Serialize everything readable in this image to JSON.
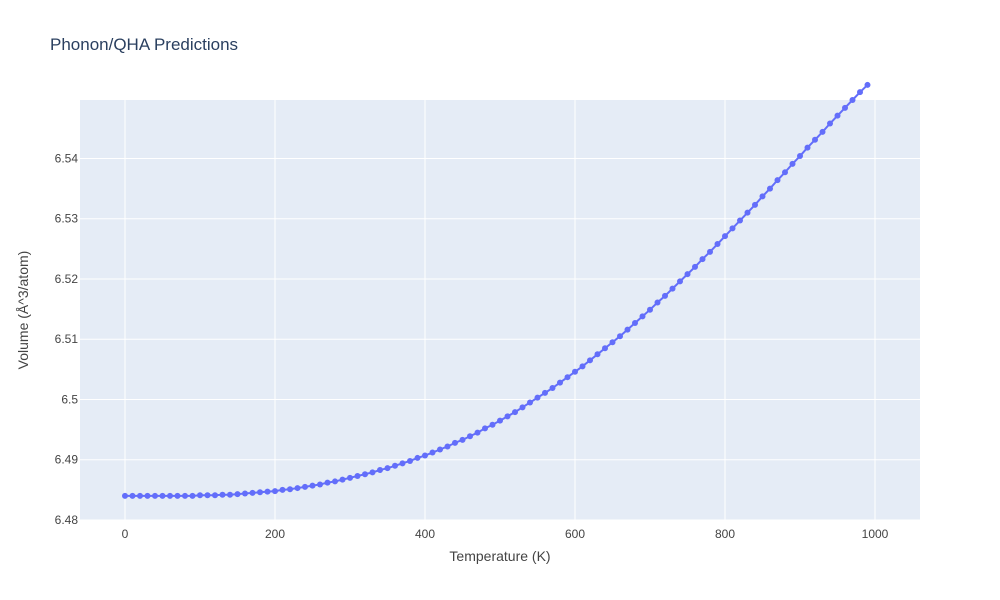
{
  "chart_data": {
    "type": "scatter",
    "mode": "lines+markers",
    "title": "Phonon/QHA Predictions",
    "xlabel": "Temperature (K)",
    "ylabel": "Volume (Å^3/atom)",
    "xlim": [
      -60,
      1060
    ],
    "ylim": [
      6.48,
      6.5497
    ],
    "xticks": [
      0,
      200,
      400,
      600,
      800,
      1000
    ],
    "xtick_labels": [
      "0",
      "200",
      "400",
      "600",
      "800",
      "1000"
    ],
    "yticks": [
      6.48,
      6.49,
      6.5,
      6.51,
      6.52,
      6.53,
      6.54
    ],
    "ytick_labels": [
      "6.48",
      "6.49",
      "6.5",
      "6.51",
      "6.52",
      "6.53",
      "6.54"
    ],
    "grid": true,
    "legend": false,
    "colors": {
      "plot_bg": "#e5ecf6",
      "grid": "#ffffff",
      "series": "#636efa",
      "title": "#2a3f5f",
      "text": "#444444"
    },
    "series": [
      {
        "x": [
          0,
          10,
          20,
          30,
          40,
          50,
          60,
          70,
          80,
          90,
          100,
          110,
          120,
          130,
          140,
          150,
          160,
          170,
          180,
          190,
          200,
          210,
          220,
          230,
          240,
          250,
          260,
          270,
          280,
          290,
          300,
          310,
          320,
          330,
          340,
          350,
          360,
          370,
          380,
          390,
          400,
          410,
          420,
          430,
          440,
          450,
          460,
          470,
          480,
          490,
          500,
          510,
          520,
          530,
          540,
          550,
          560,
          570,
          580,
          590,
          600,
          610,
          620,
          630,
          640,
          650,
          660,
          670,
          680,
          690,
          700,
          710,
          720,
          730,
          740,
          750,
          760,
          770,
          780,
          790,
          800,
          810,
          820,
          830,
          840,
          850,
          860,
          870,
          880,
          890,
          900,
          910,
          920,
          930,
          940,
          950,
          960,
          970,
          980,
          990
        ],
        "y": [
          6.484,
          6.484,
          6.484,
          6.484,
          6.484,
          6.484,
          6.484,
          6.484,
          6.484,
          6.484,
          6.4841,
          6.4841,
          6.4841,
          6.4842,
          6.4842,
          6.4843,
          6.4844,
          6.4845,
          6.4846,
          6.4847,
          6.4848,
          6.485,
          6.4851,
          6.4853,
          6.4855,
          6.4857,
          6.4859,
          6.4862,
          6.4864,
          6.4867,
          6.487,
          6.4873,
          6.4876,
          6.4879,
          6.4883,
          6.4886,
          6.489,
          6.4894,
          6.4898,
          6.4903,
          6.4907,
          6.4912,
          6.4917,
          6.4922,
          6.4928,
          6.4933,
          6.4939,
          6.4945,
          6.4952,
          6.4958,
          6.4965,
          6.4972,
          6.4979,
          6.4987,
          6.4995,
          6.5003,
          6.5011,
          6.5019,
          6.5028,
          6.5037,
          6.5046,
          6.5055,
          6.5065,
          6.5075,
          6.5085,
          6.5095,
          6.5105,
          6.5116,
          6.5127,
          6.5138,
          6.5149,
          6.5161,
          6.5172,
          6.5184,
          6.5196,
          6.5208,
          6.522,
          6.5233,
          6.5245,
          6.5258,
          6.5271,
          6.5284,
          6.5297,
          6.531,
          6.5323,
          6.5337,
          6.535,
          6.5364,
          6.5377,
          6.5391,
          6.5404,
          6.5418,
          6.5431,
          6.5444,
          6.5458,
          6.5471,
          6.5484,
          6.5497,
          6.551,
          6.5522
        ]
      }
    ]
  }
}
